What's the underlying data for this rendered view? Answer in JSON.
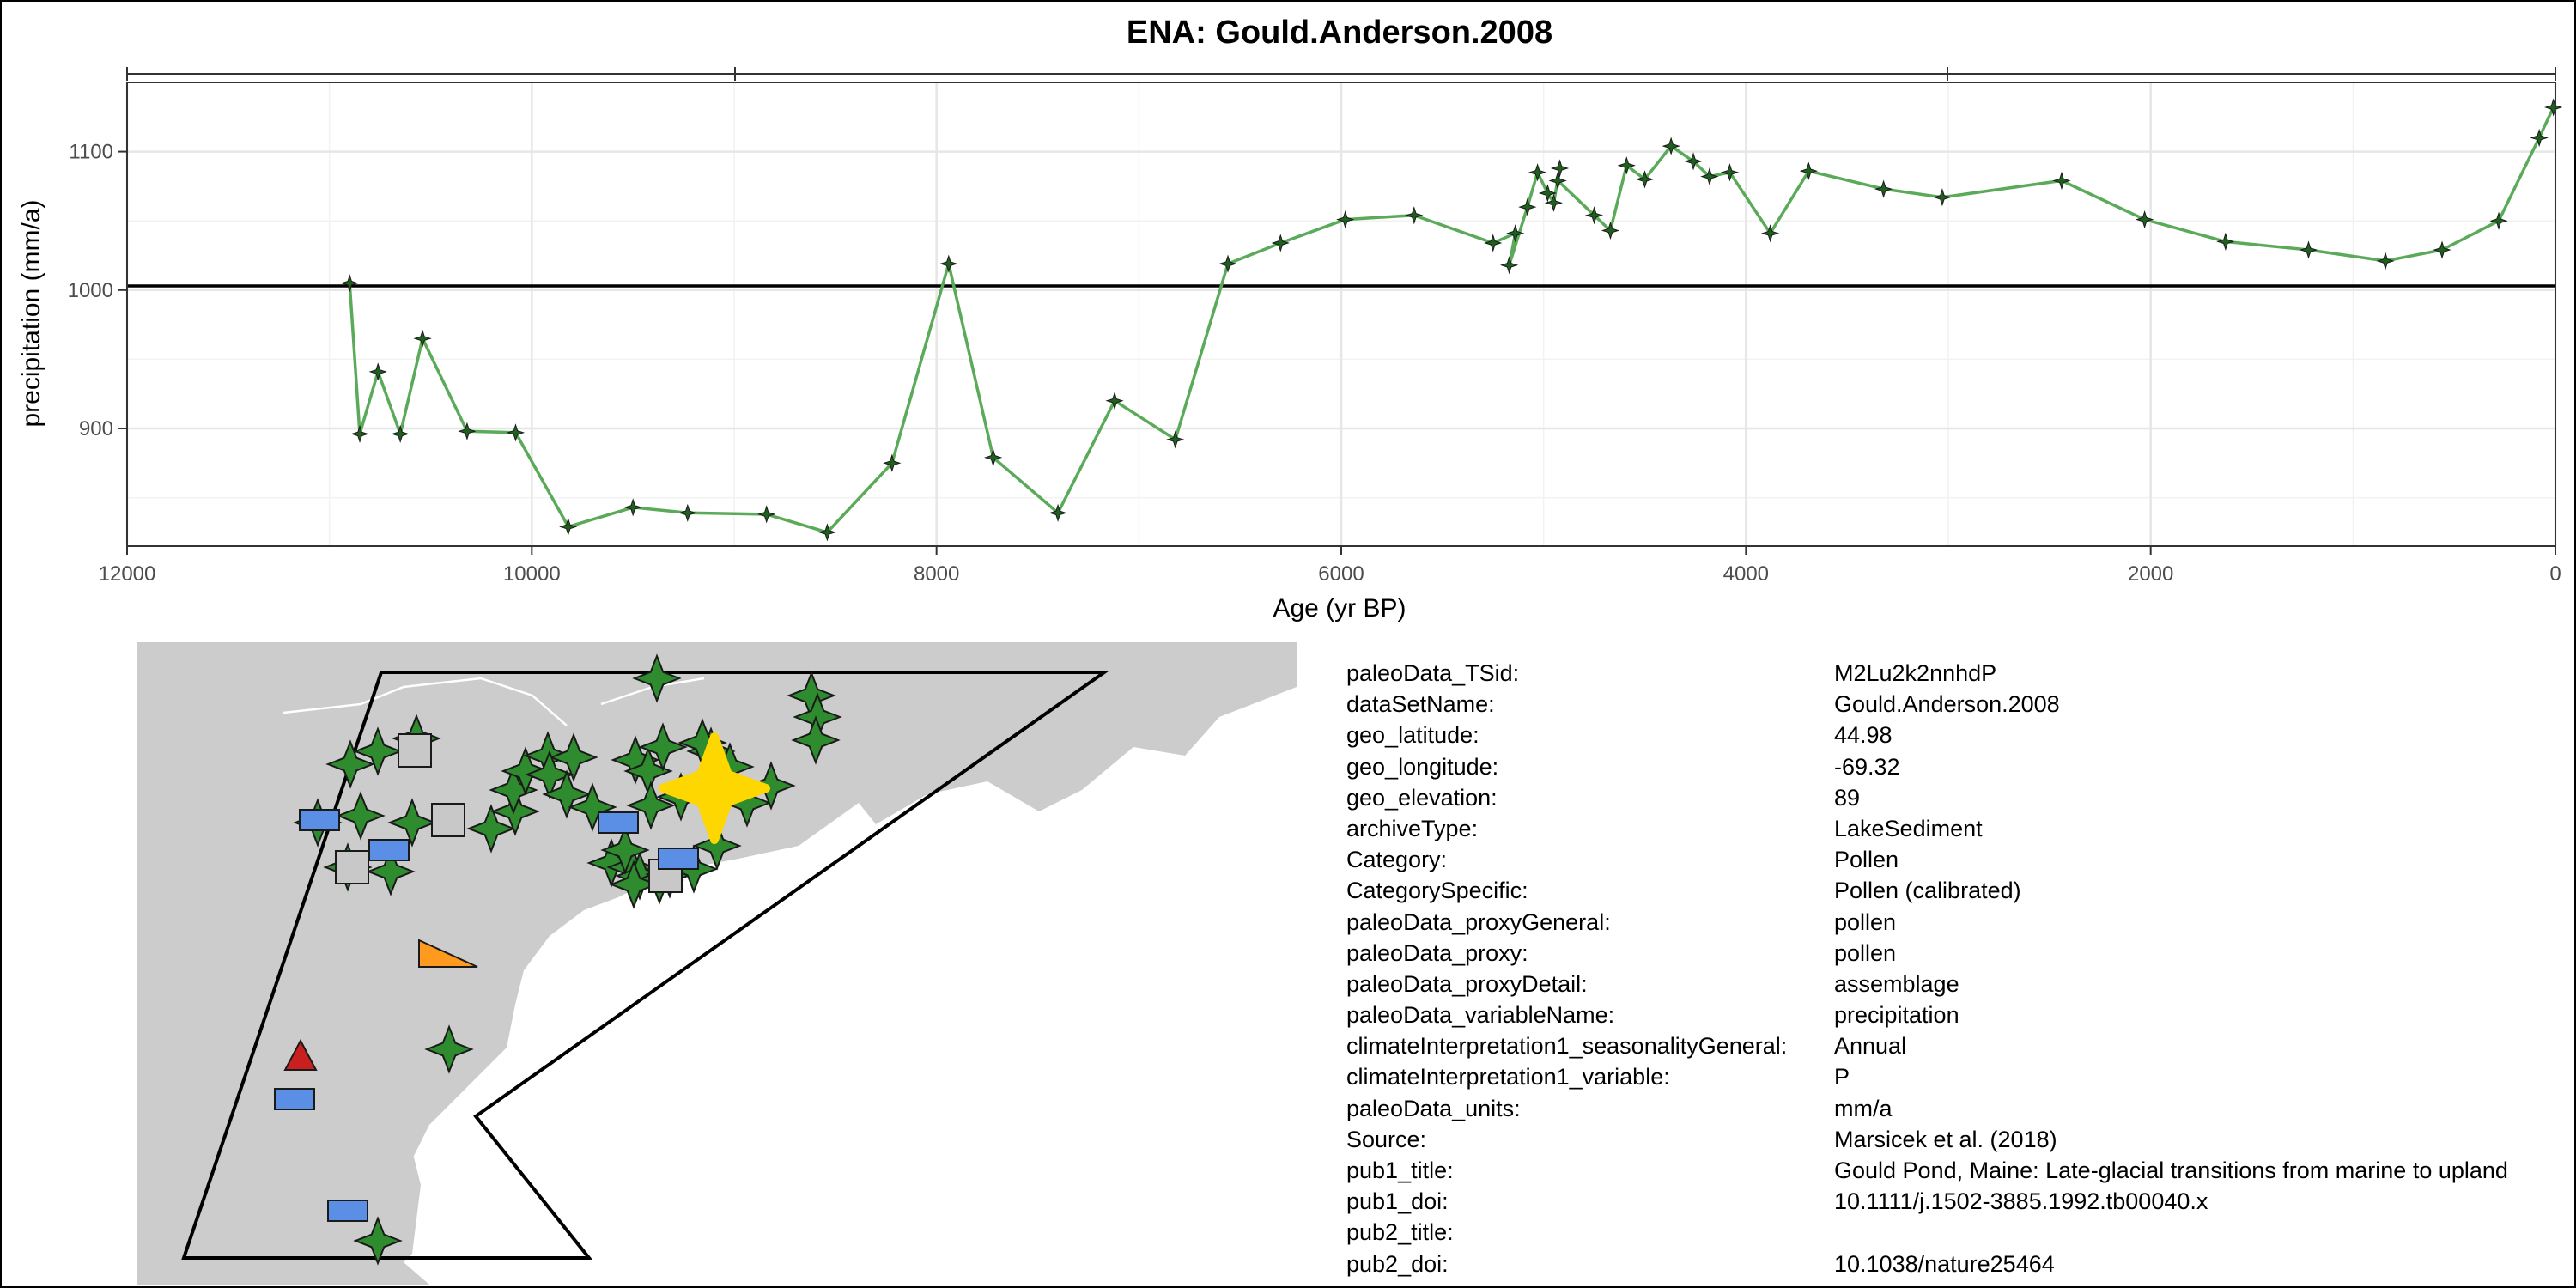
{
  "chart_data": {
    "type": "line",
    "title": "ENA: Gould.Anderson.2008",
    "xlabel": "Age (yr BP)",
    "ylabel": "precipitation (mm/a)",
    "x_reversed": true,
    "xlim": [
      12000,
      0
    ],
    "ylim": [
      815,
      1150
    ],
    "x_ticks": [
      12000,
      10000,
      8000,
      6000,
      4000,
      2000,
      0
    ],
    "y_ticks": [
      900,
      1000,
      1100
    ],
    "reference_line_y": 1003,
    "grid": true,
    "line_color": "#5aaa5a",
    "marker_color": "#1f5f1f",
    "series": [
      {
        "x": [
          10900,
          10850,
          10760,
          10650,
          10540,
          10320,
          10080,
          9820,
          9500,
          9230,
          8840,
          8540,
          8220,
          7940,
          7720,
          7400,
          7120,
          6820,
          6560,
          6300,
          5980,
          5640,
          5250,
          5140,
          5170,
          5080,
          5030,
          4980,
          4950,
          4920,
          4930,
          4750,
          4670,
          4590,
          4500,
          4370,
          4260,
          4180,
          4080,
          3880,
          3690,
          3320,
          3030,
          2440,
          2030,
          1630,
          1220,
          840,
          560,
          280,
          80,
          10
        ],
        "y": [
          1005,
          896,
          941,
          896,
          965,
          898,
          897,
          829,
          843,
          839,
          838,
          825,
          875,
          1019,
          879,
          839,
          920,
          892,
          1019,
          1034,
          1051,
          1054,
          1034,
          1041,
          1018,
          1060,
          1085,
          1070,
          1063,
          1088,
          1079,
          1054,
          1043,
          1090,
          1080,
          1104,
          1093,
          1082,
          1085,
          1041,
          1086,
          1073,
          1067,
          1079,
          1051,
          1035,
          1029,
          1021,
          1029,
          1050,
          1110,
          1132
        ]
      }
    ]
  },
  "map": {
    "land_color": "#cccccc",
    "highlight_color": "#ffd700",
    "legend_colors": {
      "pollen": "#2e8b2e",
      "other_square": "#c8c8c8",
      "rectangle": "#5b8fe6",
      "triangle_orange": "#ff9a1f",
      "triangle_red": "#c8201e"
    }
  },
  "metadata": [
    {
      "key": "paleoData_TSid:",
      "value": "M2Lu2k2nnhdP"
    },
    {
      "key": "dataSetName:",
      "value": "Gould.Anderson.2008"
    },
    {
      "key": "geo_latitude:",
      "value": "44.98"
    },
    {
      "key": "geo_longitude:",
      "value": "-69.32"
    },
    {
      "key": "geo_elevation:",
      "value": "89"
    },
    {
      "key": "archiveType:",
      "value": "LakeSediment"
    },
    {
      "key": "Category:",
      "value": "Pollen"
    },
    {
      "key": "CategorySpecific:",
      "value": "Pollen (calibrated)"
    },
    {
      "key": "paleoData_proxyGeneral:",
      "value": "pollen"
    },
    {
      "key": "paleoData_proxy:",
      "value": "pollen"
    },
    {
      "key": "paleoData_proxyDetail:",
      "value": "assemblage"
    },
    {
      "key": "paleoData_variableName:",
      "value": "precipitation"
    },
    {
      "key": "climateInterpretation1_seasonalityGeneral:",
      "value": "Annual"
    },
    {
      "key": "climateInterpretation1_variable:",
      "value": "P"
    },
    {
      "key": "paleoData_units:",
      "value": "mm/a"
    },
    {
      "key": "Source:",
      "value": "Marsicek et al. (2018)"
    },
    {
      "key": "pub1_title:",
      "value": "Gould Pond, Maine: Late-glacial transitions from marine to upland"
    },
    {
      "key": "pub1_doi:",
      "value": "10.1111/j.1502-3885.1992.tb00040.x"
    },
    {
      "key": "pub2_title:",
      "value": ""
    },
    {
      "key": "pub2_doi:",
      "value": "10.1038/nature25464"
    }
  ]
}
